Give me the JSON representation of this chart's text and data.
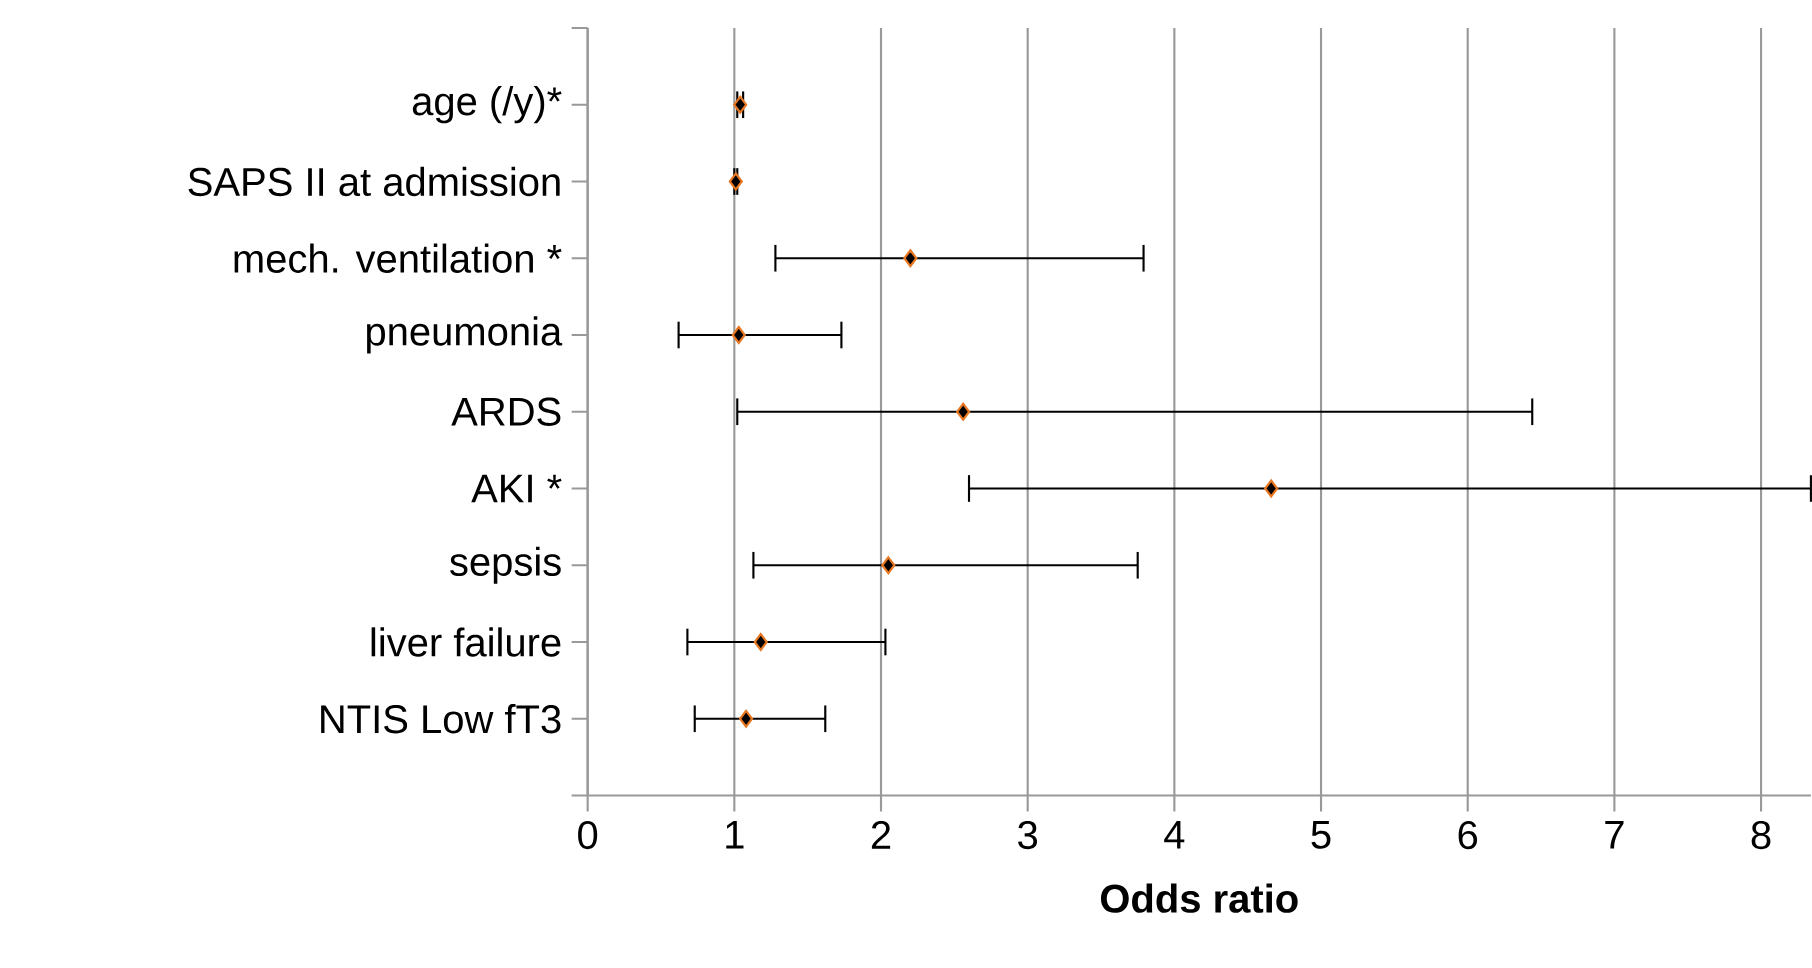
{
  "chart_data": {
    "type": "scatter",
    "orientation": "horizontal",
    "xlabel": "**Odds ratio**",
    "categories": [
      "age (/y)*",
      "SAPS II at admission",
      "mech. ventilation *",
      "pneumonia",
      "ARDS",
      "AKI *",
      "sepsis",
      "liver failure",
      "NTIS Low fT3"
    ],
    "values": [
      1.04,
      1.01,
      2.2,
      1.03,
      2.56,
      4.66,
      2.05,
      1.18,
      1.08
    ],
    "errors": [
      [
        1.02,
        1.06
      ],
      [
        1.0,
        1.02
      ],
      [
        1.28,
        3.79
      ],
      [
        0.62,
        1.73
      ],
      [
        1.02,
        6.44
      ],
      [
        2.6,
        8.34
      ],
      [
        1.13,
        3.75
      ],
      [
        0.68,
        2.03
      ],
      [
        0.73,
        1.62
      ]
    ],
    "color": "#000000",
    "xlim": [
      0,
      8.34
    ],
    "xticks": [
      0,
      1,
      2,
      3,
      4,
      5,
      6,
      7,
      8
    ],
    "grid": "x",
    "marker": "diamond"
  }
}
